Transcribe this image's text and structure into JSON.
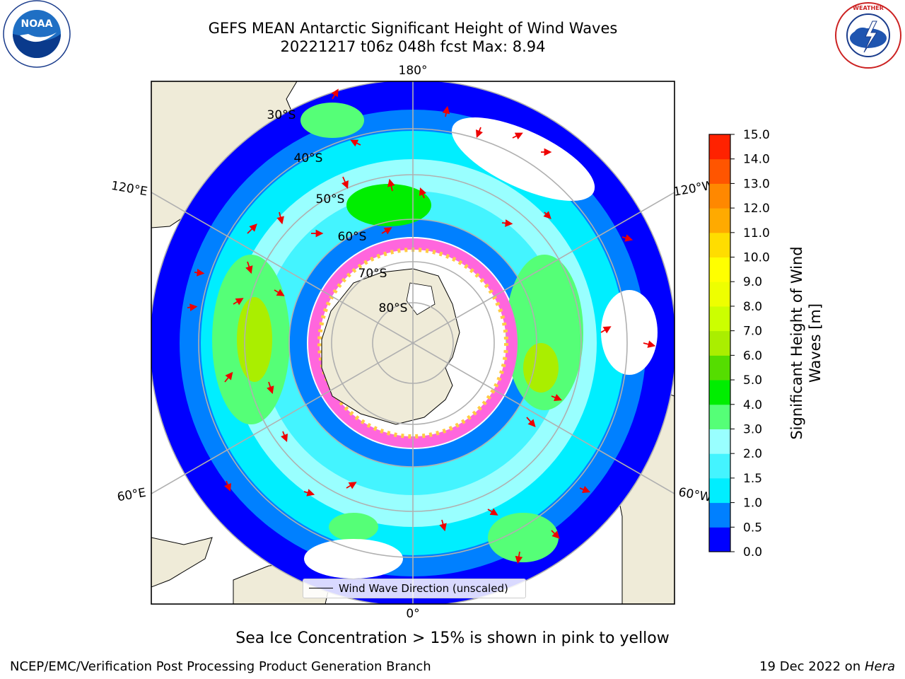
{
  "title": {
    "line1": "GEFS MEAN Antarctic Significant Height of Wind Waves",
    "line2": "20221217 t06z 048h fcst   Max: 8.94"
  },
  "logos": {
    "left": "NOAA",
    "right": "NATIONAL WEATHER SERVICE"
  },
  "map": {
    "projection": "south-polar-stereographic",
    "lon_labels": [
      "180°",
      "120°E",
      "120°W",
      "60°E",
      "60°W",
      "0°"
    ],
    "lat_labels": [
      "30°S",
      "40°S",
      "50°S",
      "60°S",
      "70°S",
      "80°S"
    ],
    "colors": {
      "land": "#efebd8",
      "ice_pink": "#ff66dd",
      "ice_yellow": "#ffcc44",
      "arrow": "#ee0000",
      "grid": "#b0b0b0"
    }
  },
  "legend": {
    "label": "Wind Wave Direction (unscaled)"
  },
  "colorbar": {
    "title_line1": "Significant Height of Wind",
    "title_line2": "Waves [m]",
    "ticks": [
      "0.0",
      "0.5",
      "1.0",
      "1.5",
      "2.0",
      "3.0",
      "4.0",
      "5.0",
      "6.0",
      "7.0",
      "8.0",
      "9.0",
      "10.0",
      "11.0",
      "12.0",
      "13.0",
      "14.0",
      "15.0"
    ],
    "colors": [
      "#0000ff",
      "#0080ff",
      "#00eeff",
      "#44f4ff",
      "#99ffff",
      "#55ff77",
      "#00ee00",
      "#55dd00",
      "#aaee00",
      "#ccff00",
      "#eeff00",
      "#ffff00",
      "#ffdd00",
      "#ffaa00",
      "#ff8800",
      "#ff5500",
      "#ff2200"
    ]
  },
  "caption": "Sea Ice Concentration > 15% is shown in pink to yellow",
  "footer": {
    "left": "NCEP/EMC/Verification Post Processing Product Generation Branch",
    "right_date": "19 Dec 2022 on ",
    "right_machine": "Hera"
  }
}
